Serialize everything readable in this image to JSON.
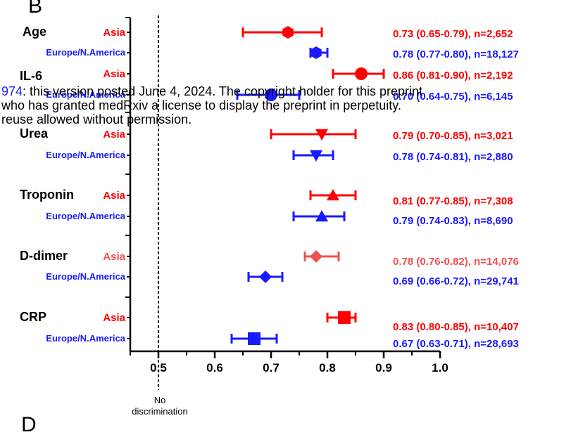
{
  "panel_labels": {
    "top": "B",
    "bottom": "D"
  },
  "overlay": {
    "line1_prefix": "974",
    "line1_rest": ": this version posted June 4, 2024. The copyright holder for this preprint",
    "line2": "who has granted medRxiv a license to display the preprint in perpetuity.",
    "line3": "reuse allowed without permission."
  },
  "reference": {
    "value": 0.5,
    "label_line1": "No",
    "label_line2": "discrimination"
  },
  "colors": {
    "asia": "#ff0000",
    "asia_light": "#f05050",
    "europe": "#1a1aff",
    "axis": "#000000"
  },
  "chart_data": {
    "type": "forest",
    "xlim": [
      0.45,
      1.0
    ],
    "xticks": [
      0.5,
      0.6,
      0.7,
      0.8,
      0.9,
      1.0
    ],
    "xtick_labels": [
      "0.5",
      "0.6",
      "0.7",
      "0.8",
      "0.9",
      "1.0"
    ],
    "xlabel": "",
    "groups": [
      {
        "name": "Age",
        "rows": [
          {
            "region": "Asia",
            "auc": 0.73,
            "lo": 0.65,
            "hi": 0.79,
            "label": "0.73 (0.65-0.79), n=2,652",
            "marker": "hexagon"
          },
          {
            "region": "Europe/N.America",
            "auc": 0.78,
            "lo": 0.77,
            "hi": 0.8,
            "label": "0.78 (0.77-0.80), n=18,127",
            "marker": "hexagon"
          }
        ]
      },
      {
        "name": "IL-6",
        "rows": [
          {
            "region": "Asia",
            "auc": 0.86,
            "lo": 0.81,
            "hi": 0.9,
            "label": "0.86 (0.81-0.90), n=2,192",
            "marker": "circle"
          },
          {
            "region": "Europe/N.America",
            "auc": 0.7,
            "lo": 0.64,
            "hi": 0.75,
            "label": "0.70 (0.64-0.75), n=6,145",
            "marker": "circle"
          }
        ]
      },
      {
        "name": "Urea",
        "rows": [
          {
            "region": "Asia",
            "auc": 0.79,
            "lo": 0.7,
            "hi": 0.85,
            "label": "0.79 (0.70-0.85), n=3,021",
            "marker": "triangle-down"
          },
          {
            "region": "Europe/N.America",
            "auc": 0.78,
            "lo": 0.74,
            "hi": 0.81,
            "label": "0.78 (0.74-0.81), n=2,880",
            "marker": "triangle-down"
          }
        ]
      },
      {
        "name": "Troponin",
        "rows": [
          {
            "region": "Asia",
            "auc": 0.81,
            "lo": 0.77,
            "hi": 0.85,
            "label": "0.81 (0.77-0.85), n=7,308",
            "marker": "triangle-up"
          },
          {
            "region": "Europe/N.America",
            "auc": 0.79,
            "lo": 0.74,
            "hi": 0.83,
            "label": "0.79 (0.74-0.83), n=8,690",
            "marker": "triangle-up"
          }
        ]
      },
      {
        "name": "D-dimer",
        "rows": [
          {
            "region": "Asia",
            "auc": 0.78,
            "lo": 0.76,
            "hi": 0.82,
            "label": "0.78 (0.76-0.82), n=14,076",
            "marker": "diamond"
          },
          {
            "region": "Europe/N.America",
            "auc": 0.69,
            "lo": 0.66,
            "hi": 0.72,
            "label": "0.69 (0.66-0.72), n=29,741",
            "marker": "diamond"
          }
        ]
      },
      {
        "name": "CRP",
        "rows": [
          {
            "region": "Asia",
            "auc": 0.83,
            "lo": 0.8,
            "hi": 0.85,
            "label": "0.83 (0.80-0.85), n=10,407",
            "marker": "square"
          },
          {
            "region": "Europe/N.America",
            "auc": 0.67,
            "lo": 0.63,
            "hi": 0.71,
            "label": "0.67 (0.63-0.71), n=28,693",
            "marker": "square"
          }
        ]
      }
    ]
  }
}
